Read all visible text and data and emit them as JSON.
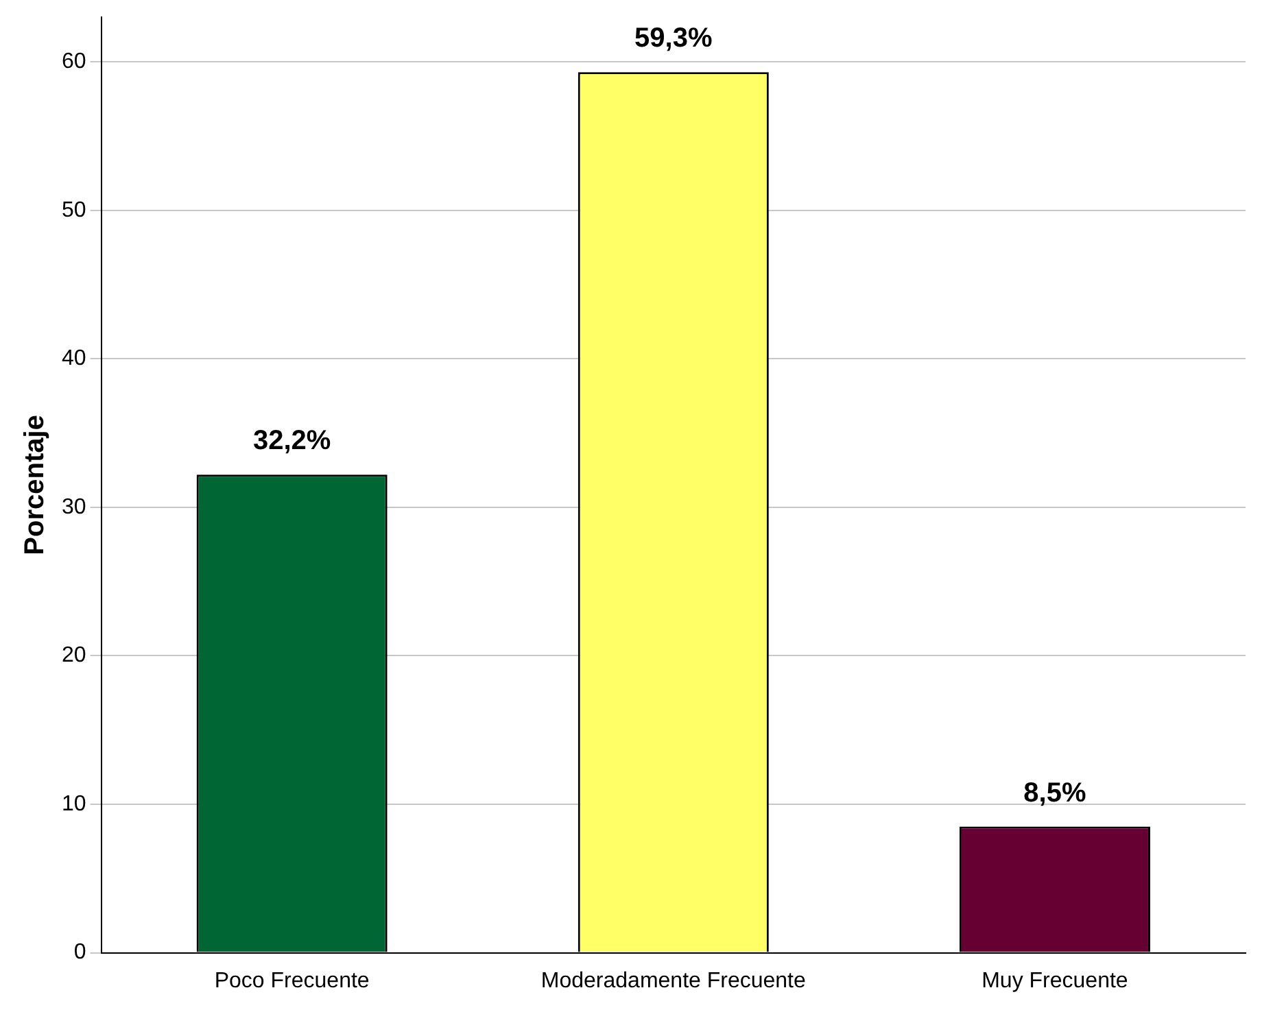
{
  "chart_data": {
    "type": "bar",
    "ylabel": "Porcentaje",
    "categories": [
      "Poco Frecuente",
      "Moderadamente Frecuente",
      "Muy Frecuente"
    ],
    "values": [
      32.2,
      59.3,
      8.5
    ],
    "colors": [
      "#006633",
      "#ffff66",
      "#660033"
    ],
    "value_labels": [
      "32,2%",
      "59,3%",
      "8,5%"
    ],
    "ylim": [
      0,
      63
    ],
    "yticks": [
      0,
      10,
      20,
      30,
      40,
      50,
      60
    ],
    "grid": "y",
    "legend": false
  }
}
